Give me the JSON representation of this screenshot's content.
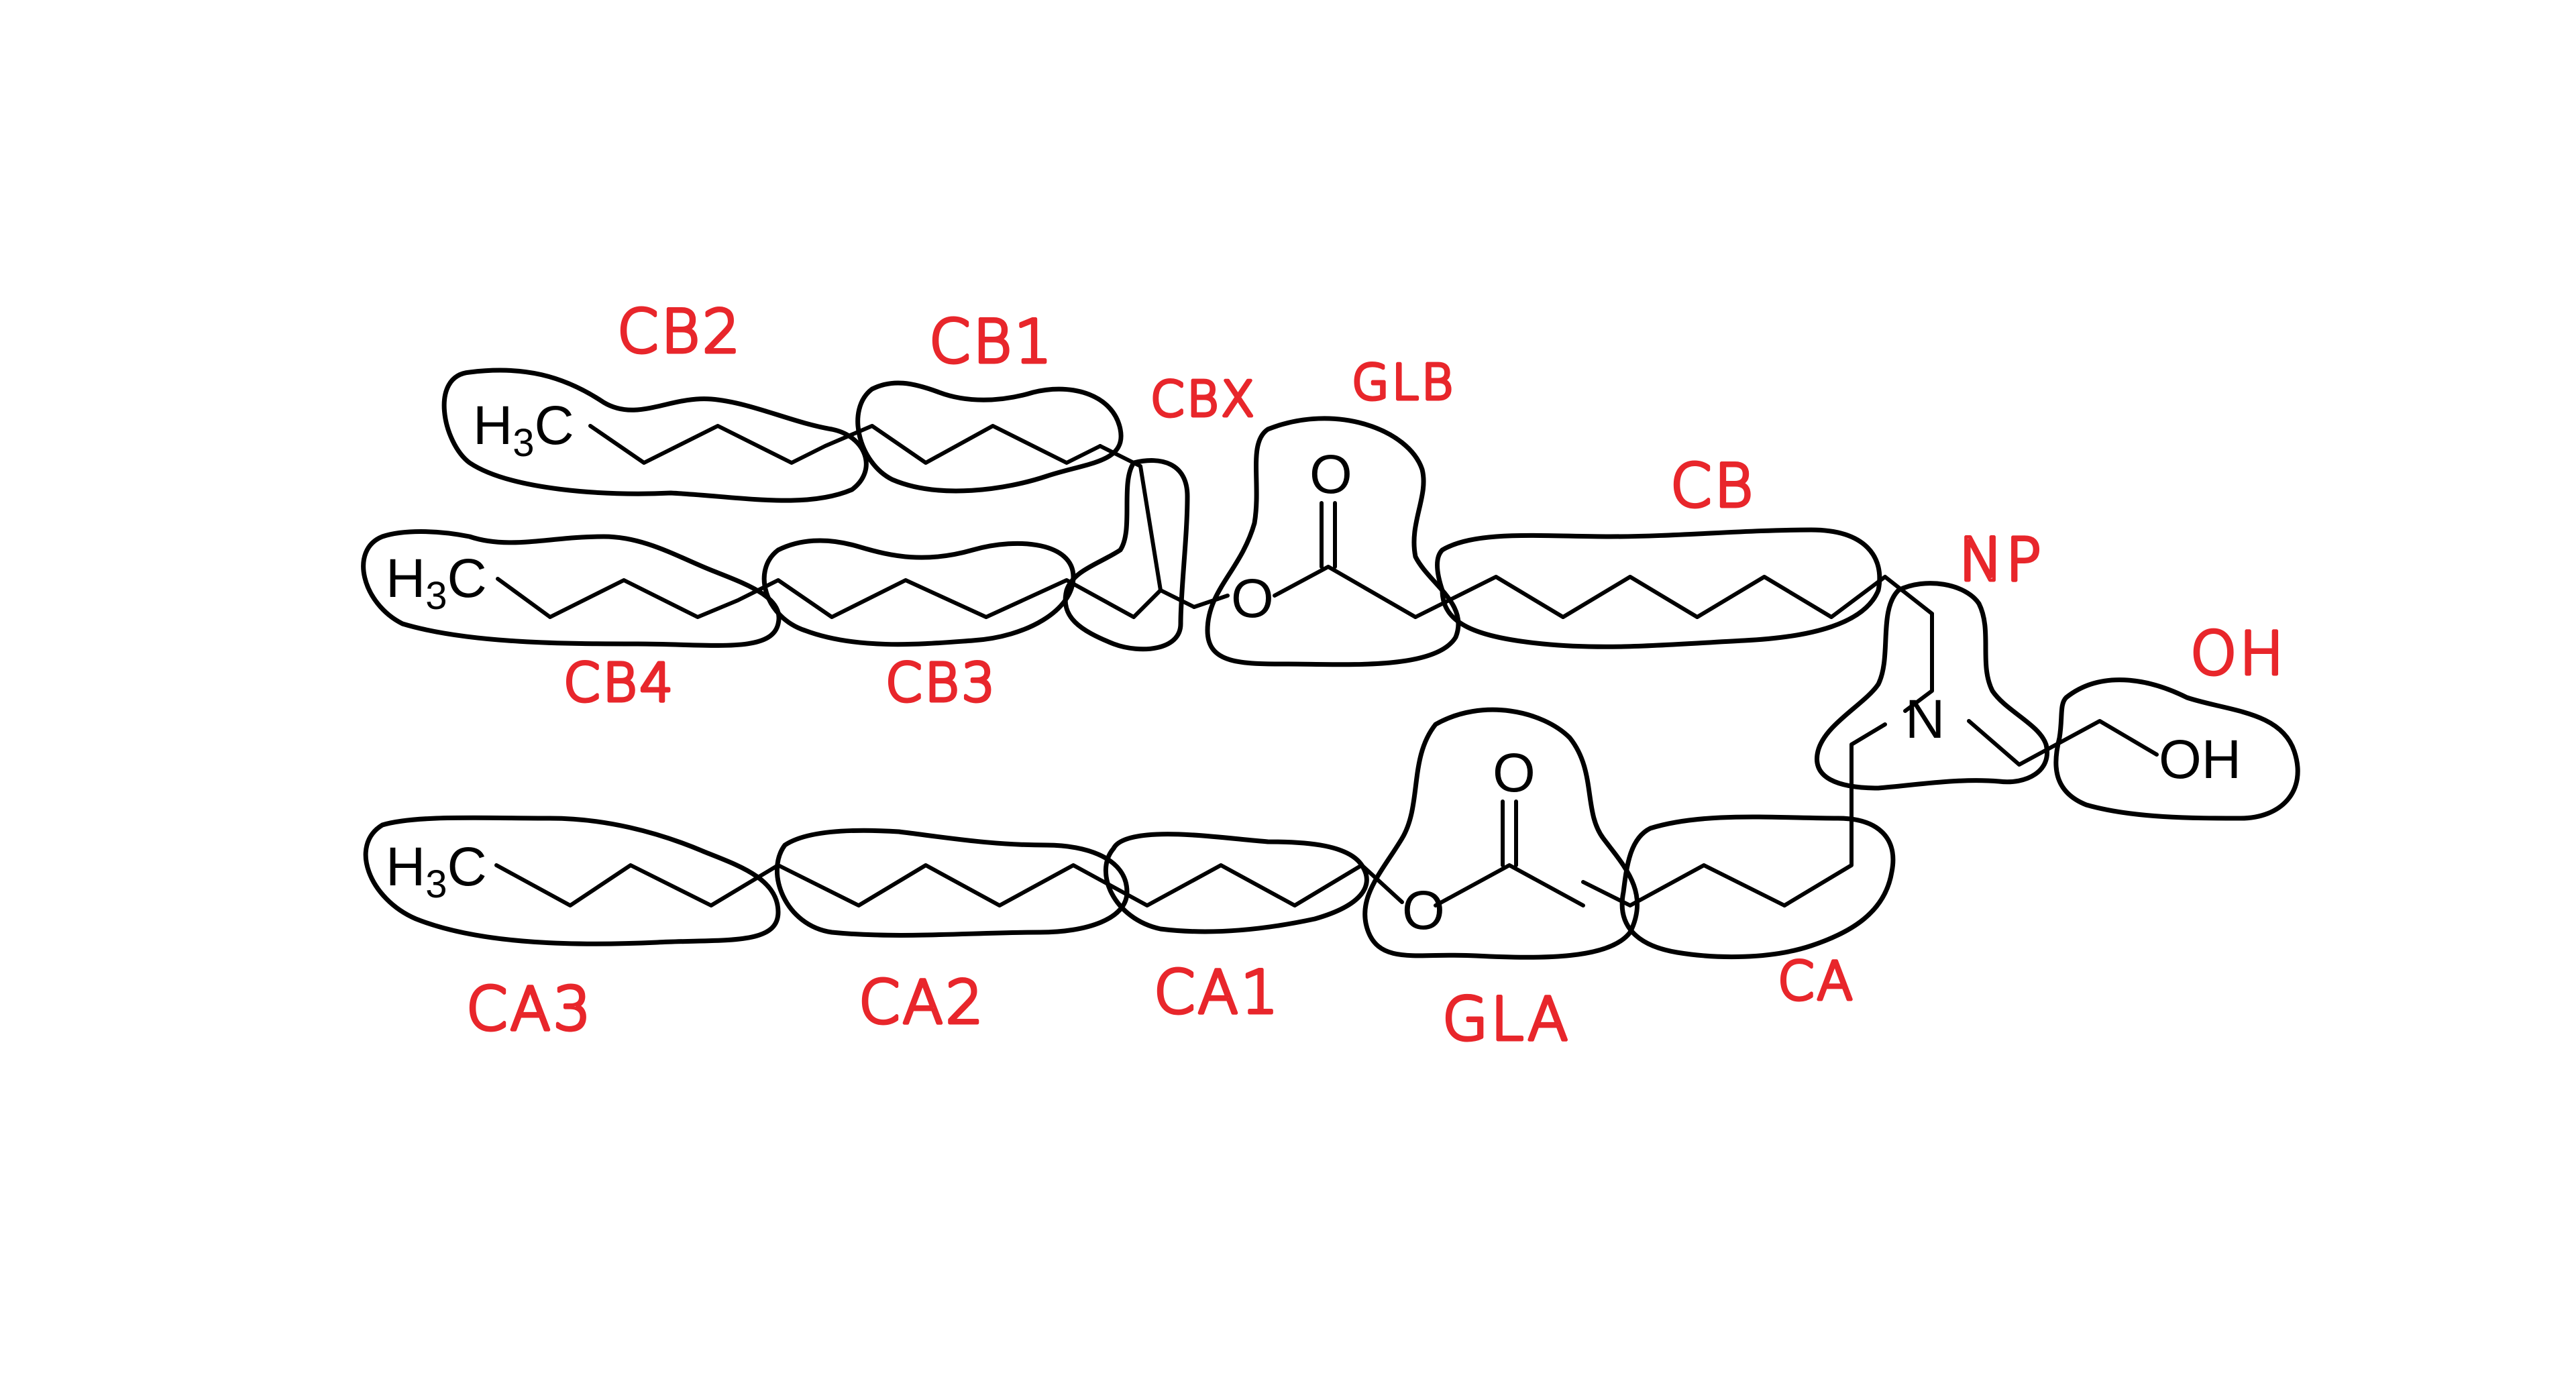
{
  "diagram": {
    "colors": {
      "structure": "#000000",
      "labels": "#e8262b",
      "background": "#ffffff"
    },
    "atoms": {
      "methyl_h": "H",
      "methyl_sub": "3",
      "methyl_c": "C",
      "carbonyl_o": "O",
      "ester_o": "O",
      "nitrogen": "N",
      "hydroxyl": "OH"
    },
    "group_labels": {
      "cb2": "CB2",
      "cb1": "CB1",
      "cbx": "CBX",
      "glb": "GLB",
      "cb": "CB",
      "np": "NP",
      "oh": "OH",
      "cb4": "CB4",
      "cb3": "CB3",
      "ca3": "CA3",
      "ca2": "CA2",
      "ca1": "CA1",
      "gla": "GLA",
      "ca": "CA"
    }
  }
}
